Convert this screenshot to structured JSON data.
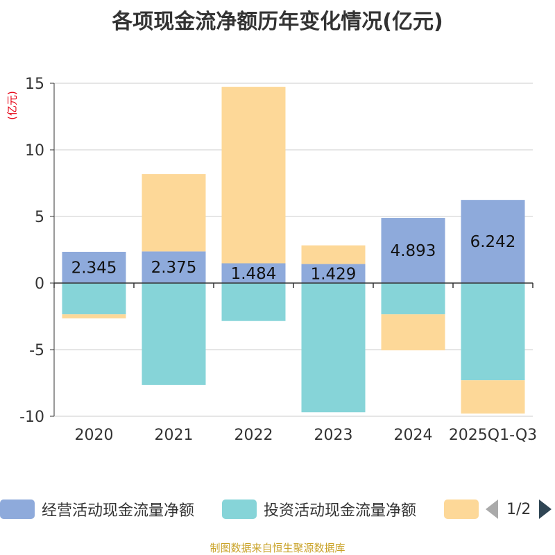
{
  "chart_data": {
    "type": "bar",
    "title": "各项现金流净额历年变化情况(亿元)",
    "ylabel": "(亿元)",
    "ylim": [
      -10,
      15
    ],
    "yticks": [
      -10,
      -5,
      0,
      5,
      10,
      15
    ],
    "categories": [
      "2020",
      "2021",
      "2022",
      "2023",
      "2024",
      "2025Q1-Q3"
    ],
    "series": [
      {
        "name": "经营活动现金流量净额",
        "color": "#8eaadb",
        "values": [
          2.345,
          2.375,
          1.484,
          1.429,
          4.893,
          6.242
        ]
      },
      {
        "name": "投资活动现金流量净额",
        "color": "#86d4d8",
        "values": [
          -2.35,
          -7.65,
          -2.85,
          -9.7,
          -2.35,
          -7.3
        ]
      },
      {
        "name": "",
        "color": "#fdd898",
        "values": [
          -0.3,
          5.8,
          13.25,
          1.4,
          -2.7,
          -2.5
        ]
      }
    ],
    "data_labels": [
      "2.345",
      "2.375",
      "1.484",
      "1.429",
      "4.893",
      "6.242"
    ]
  },
  "legend": {
    "items": [
      {
        "label": "经营活动现金流量净额",
        "color": "#8eaadb"
      },
      {
        "label": "投资活动现金流量净额",
        "color": "#86d4d8"
      },
      {
        "label": "",
        "color": "#fdd898"
      }
    ],
    "page": "1/2"
  },
  "source": "制图数据来自恒生聚源数据库"
}
